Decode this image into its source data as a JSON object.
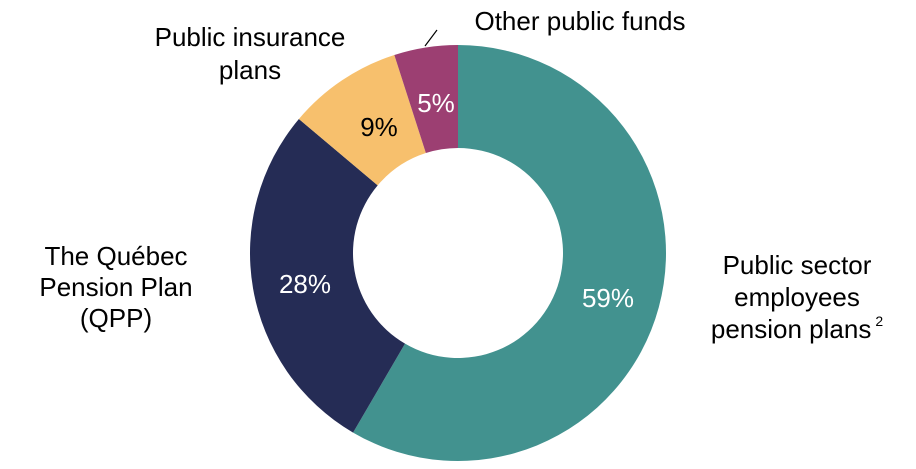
{
  "chart_data": {
    "type": "pie",
    "donut": true,
    "title": "",
    "slices": [
      {
        "name": "Public sector employees pension plans",
        "label_lines": [
          "Public sector",
          "employees",
          "pension plans"
        ],
        "footnote": "2",
        "value": 59,
        "value_label": "59%",
        "color": "#42928f",
        "value_text_color": "#ffffff"
      },
      {
        "name": "The Québec Pension Plan (QPP)",
        "label_lines": [
          "The Québec",
          "Pension Plan",
          "(QPP)"
        ],
        "value": 28,
        "value_label": "28%",
        "color": "#252c55",
        "value_text_color": "#ffffff"
      },
      {
        "name": "Public insurance plans",
        "label_lines": [
          "Public insurance",
          "plans"
        ],
        "value": 9,
        "value_label": "9%",
        "color": "#f7c06d",
        "value_text_color": "#000000"
      },
      {
        "name": "Other public funds",
        "label_lines": [
          "Other public funds"
        ],
        "value": 5,
        "value_label": "5%",
        "color": "#9c3f72",
        "value_text_color": "#ffffff"
      }
    ],
    "start": "12 o'clock",
    "direction": "clockwise",
    "legend": "none"
  }
}
